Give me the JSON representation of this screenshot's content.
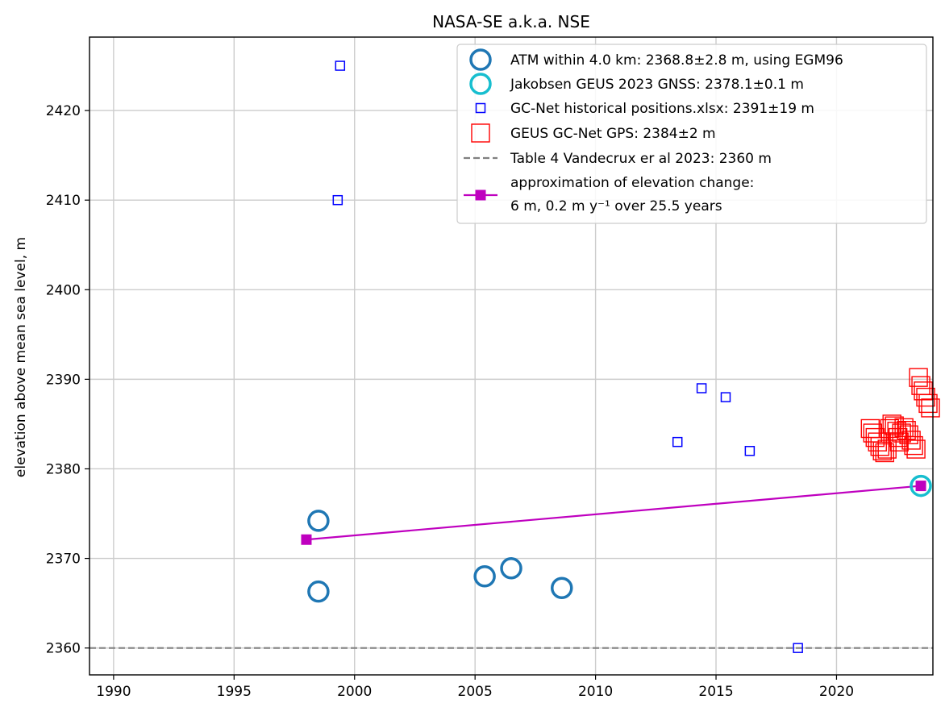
{
  "chart_data": {
    "type": "scatter",
    "title": "NASA-SE a.k.a. NSE",
    "xlabel": "",
    "ylabel": "elevation above mean sea level, m",
    "xlim": [
      1989,
      2024
    ],
    "ylim": [
      2357,
      2428.2
    ],
    "xticks": [
      1990,
      1995,
      2000,
      2005,
      2010,
      2015,
      2020
    ],
    "yticks": [
      2360,
      2370,
      2380,
      2390,
      2400,
      2410,
      2420
    ],
    "grid": true,
    "legend_position": "top-right",
    "colors": {
      "atm": "#1f77b4",
      "jakobsen": "#17becf",
      "historical": "#0000ff",
      "geus": "#ff0000",
      "table4": "#808080",
      "approx": "#bf00bf"
    },
    "series": [
      {
        "key": "atm",
        "name": "ATM within 4.0 km: 2368.8±2.8 m, using EGM96",
        "marker": "circle-open",
        "points": [
          [
            1998.5,
            2374.2
          ],
          [
            1998.5,
            2366.3
          ],
          [
            2005.4,
            2368.0
          ],
          [
            2006.5,
            2368.9
          ],
          [
            2008.6,
            2366.7
          ]
        ]
      },
      {
        "key": "jakobsen",
        "name": "Jakobsen GEUS 2023 GNSS: 2378.1±0.1 m",
        "marker": "circle-open",
        "points": [
          [
            2023.5,
            2378.1
          ]
        ]
      },
      {
        "key": "historical",
        "name": "GC-Net historical positions.xlsx: 2391±19 m",
        "marker": "square-open-small",
        "points": [
          [
            1999.4,
            2425.0
          ],
          [
            1999.3,
            2410.0
          ],
          [
            2013.4,
            2383.0
          ],
          [
            2014.4,
            2389.0
          ],
          [
            2015.4,
            2388.0
          ],
          [
            2016.4,
            2382.0
          ],
          [
            2018.4,
            2360.0
          ]
        ]
      },
      {
        "key": "geus",
        "name": "GEUS GC-Net GPS: 2384±2 m",
        "marker": "square-open-large",
        "points": [
          [
            2021.4,
            2384.5
          ],
          [
            2021.5,
            2384.0
          ],
          [
            2021.6,
            2383.5
          ],
          [
            2021.7,
            2383.0
          ],
          [
            2021.8,
            2382.5
          ],
          [
            2021.9,
            2382.0
          ],
          [
            2022.0,
            2381.8
          ],
          [
            2022.1,
            2382.2
          ],
          [
            2022.2,
            2384.5
          ],
          [
            2022.3,
            2385.0
          ],
          [
            2022.4,
            2384.8
          ],
          [
            2022.5,
            2384.2
          ],
          [
            2022.55,
            2383.5
          ],
          [
            2022.6,
            2383.0
          ],
          [
            2022.7,
            2384.0
          ],
          [
            2022.8,
            2384.6
          ],
          [
            2022.9,
            2384.3
          ],
          [
            2023.0,
            2383.8
          ],
          [
            2023.1,
            2383.2
          ],
          [
            2023.2,
            2382.6
          ],
          [
            2023.3,
            2382.2
          ],
          [
            2023.4,
            2390.2
          ],
          [
            2023.5,
            2389.3
          ],
          [
            2023.6,
            2388.7
          ],
          [
            2023.7,
            2388.0
          ],
          [
            2023.8,
            2387.3
          ],
          [
            2023.9,
            2386.8
          ]
        ]
      }
    ],
    "reference_line": {
      "name": "Table 4 Vandecrux er al 2023: 2360 m",
      "y": 2360
    },
    "trend_line": {
      "name_line1": "approximation of elevation change:",
      "name_line2": "6 m, 0.2 m y⁻¹ over 25.5 years",
      "points": [
        [
          1998.0,
          2372.1
        ],
        [
          2023.5,
          2378.1
        ]
      ]
    }
  }
}
